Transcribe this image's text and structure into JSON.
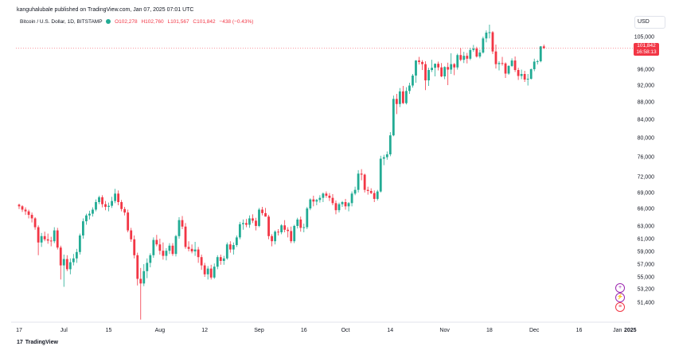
{
  "header": {
    "publisher_line": "kanguhalubale published on TradingView.com, Jan 07, 2025 07:01 UTC",
    "symbol": "Bitcoin / U.S. Dollar, 1D, BITSTAMP",
    "open": "O102,278",
    "high": "H102,760",
    "low": "L101,567",
    "close": "C101,842",
    "change": "−438 (−0.43%)"
  },
  "currency": "USD",
  "last_price": {
    "price": "101,842",
    "countdown": "16:58:13",
    "value": 101842,
    "color": "#f23645"
  },
  "footer": {
    "brand": "TradingView"
  },
  "colors": {
    "up": "#22ab94",
    "down": "#f23645"
  },
  "event_icons": [
    {
      "name": "dividend-event-icon",
      "glyph": "+",
      "color": "#9c27b0"
    },
    {
      "name": "lightning-event-icon",
      "glyph": "⚡",
      "color": "#9c27b0"
    },
    {
      "name": "us-flag-event-icon",
      "glyph": "≡",
      "color": "#f23645"
    }
  ],
  "chart_data": {
    "type": "candlestick",
    "xlabel": "",
    "ylabel": "",
    "ylim": [
      47000,
      109500
    ],
    "y_ticks": [
      105000,
      96000,
      92000,
      88000,
      84000,
      80000,
      76000,
      72000,
      69000,
      66000,
      63000,
      61000,
      59000,
      57000,
      55000,
      53200,
      51400
    ],
    "x_ticks": [
      "17",
      "Jul",
      "15",
      "Aug",
      "12",
      "Sep",
      "16",
      "Oct",
      "14",
      "Nov",
      "18",
      "Dec",
      "16",
      "Jan",
      "2025"
    ],
    "x_tick_index": [
      0,
      14,
      28,
      44,
      58,
      75,
      89,
      102,
      116,
      133,
      147,
      161,
      175,
      188,
      189
    ],
    "grid": false,
    "candles": [
      [
        66700,
        66900,
        65900,
        66400
      ],
      [
        66400,
        66600,
        65400,
        65800
      ],
      [
        65800,
        66200,
        64900,
        65500
      ],
      [
        65500,
        65800,
        64300,
        64900
      ],
      [
        64900,
        65300,
        63600,
        64300
      ],
      [
        64300,
        64500,
        62400,
        62800
      ],
      [
        62800,
        63100,
        58400,
        60400
      ],
      [
        60400,
        61900,
        59700,
        61400
      ],
      [
        61400,
        62100,
        60600,
        60900
      ],
      [
        60900,
        61800,
        60200,
        60700
      ],
      [
        60700,
        61300,
        59800,
        60600
      ],
      [
        60600,
        62800,
        60300,
        62300
      ],
      [
        62300,
        62700,
        59300,
        59600
      ],
      [
        59600,
        59900,
        54600,
        56800
      ],
      [
        56800,
        58500,
        53500,
        57800
      ],
      [
        57800,
        58400,
        55900,
        56200
      ],
      [
        56200,
        57900,
        55400,
        57300
      ],
      [
        57300,
        58600,
        56800,
        57900
      ],
      [
        57900,
        59400,
        57200,
        58900
      ],
      [
        58900,
        61800,
        58500,
        61500
      ],
      [
        61500,
        64300,
        61000,
        63800
      ],
      [
        63800,
        65100,
        63200,
        64800
      ],
      [
        64800,
        65600,
        64100,
        65100
      ],
      [
        65100,
        66200,
        64600,
        65800
      ],
      [
        65800,
        67700,
        65500,
        67200
      ],
      [
        67200,
        68400,
        66800,
        68100
      ],
      [
        68100,
        68500,
        66200,
        66800
      ],
      [
        66800,
        67400,
        65700,
        66300
      ],
      [
        66300,
        67100,
        65500,
        66500
      ],
      [
        66500,
        68200,
        66100,
        67400
      ],
      [
        67400,
        69700,
        67000,
        68800
      ],
      [
        68800,
        69400,
        66600,
        67200
      ],
      [
        67200,
        67600,
        65500,
        65900
      ],
      [
        65900,
        66300,
        64800,
        65300
      ],
      [
        65300,
        65800,
        62000,
        62300
      ],
      [
        62300,
        62700,
        60500,
        60900
      ],
      [
        60900,
        61500,
        57900,
        58400
      ],
      [
        58400,
        58800,
        53700,
        54700
      ],
      [
        54700,
        56400,
        49100,
        54000
      ],
      [
        54000,
        57000,
        53600,
        55900
      ],
      [
        55900,
        57900,
        54800,
        57200
      ],
      [
        57200,
        58700,
        56500,
        58400
      ],
      [
        58400,
        61200,
        58000,
        60800
      ],
      [
        60800,
        61600,
        59800,
        60100
      ],
      [
        60100,
        61000,
        58500,
        59100
      ],
      [
        59100,
        60400,
        57700,
        58300
      ],
      [
        58300,
        59500,
        57600,
        59100
      ],
      [
        59100,
        60300,
        58600,
        59900
      ],
      [
        59900,
        60300,
        58300,
        58600
      ],
      [
        58600,
        61600,
        58200,
        61400
      ],
      [
        61400,
        64500,
        61000,
        64000
      ],
      [
        64000,
        64700,
        62500,
        62900
      ],
      [
        62900,
        63500,
        59400,
        59700
      ],
      [
        59700,
        60600,
        59000,
        59400
      ],
      [
        59400,
        60100,
        58700,
        59000
      ],
      [
        59000,
        60500,
        58300,
        59300
      ],
      [
        59300,
        59700,
        57200,
        58100
      ],
      [
        58100,
        58500,
        56100,
        56800
      ],
      [
        56800,
        57200,
        55000,
        55400
      ],
      [
        55400,
        56700,
        54600,
        56300
      ],
      [
        56300,
        56900,
        54600,
        54900
      ],
      [
        54900,
        57100,
        54700,
        56600
      ],
      [
        56600,
        58400,
        56200,
        58100
      ],
      [
        58100,
        58500,
        56900,
        57500
      ],
      [
        57500,
        58300,
        56900,
        57900
      ],
      [
        57900,
        60400,
        57700,
        60100
      ],
      [
        60100,
        60600,
        58800,
        59300
      ],
      [
        59300,
        60400,
        58500,
        60000
      ],
      [
        60000,
        61500,
        59700,
        61200
      ],
      [
        61200,
        63700,
        60900,
        63300
      ],
      [
        63300,
        64100,
        62400,
        63500
      ],
      [
        63500,
        64200,
        62800,
        63200
      ],
      [
        63200,
        64800,
        62700,
        64300
      ],
      [
        64300,
        65000,
        63500,
        63900
      ],
      [
        63900,
        64400,
        62300,
        63000
      ],
      [
        63000,
        66100,
        62800,
        65800
      ],
      [
        65800,
        66300,
        64800,
        65200
      ],
      [
        65200,
        66100,
        64600,
        64600
      ],
      [
        64600,
        64900,
        60900,
        61400
      ],
      [
        61400,
        61700,
        59800,
        60600
      ],
      [
        60600,
        62300,
        60100,
        62100
      ],
      [
        62100,
        62500,
        61500,
        62000
      ],
      [
        62000,
        63300,
        61700,
        63100
      ],
      [
        63100,
        64000,
        62000,
        62400
      ],
      [
        62400,
        62800,
        61200,
        62200
      ],
      [
        62200,
        62900,
        60300,
        60600
      ],
      [
        60600,
        63200,
        60300,
        63000
      ],
      [
        63000,
        64400,
        62600,
        64100
      ],
      [
        64100,
        64600,
        62100,
        62700
      ],
      [
        62700,
        63400,
        62000,
        62800
      ],
      [
        62800,
        66300,
        62500,
        66000
      ],
      [
        66000,
        67900,
        65700,
        67700
      ],
      [
        67700,
        68400,
        66400,
        67300
      ],
      [
        67300,
        67800,
        66600,
        67600
      ],
      [
        67600,
        68500,
        67100,
        68000
      ],
      [
        68000,
        69000,
        67200,
        68800
      ],
      [
        68800,
        69200,
        68000,
        68400
      ],
      [
        68400,
        68900,
        67400,
        68000
      ],
      [
        68000,
        68700,
        66600,
        67000
      ],
      [
        67000,
        67500,
        65000,
        65700
      ],
      [
        65700,
        67100,
        65300,
        66800
      ],
      [
        66800,
        67400,
        66300,
        67200
      ],
      [
        67200,
        67800,
        65800,
        66400
      ],
      [
        66400,
        67200,
        65500,
        67000
      ],
      [
        67000,
        69200,
        66400,
        68800
      ],
      [
        68800,
        70100,
        68500,
        69500
      ],
      [
        69500,
        73300,
        69000,
        72600
      ],
      [
        72600,
        73500,
        71300,
        72400
      ],
      [
        72400,
        72600,
        69000,
        69500
      ],
      [
        69500,
        70100,
        68600,
        69300
      ],
      [
        69300,
        69800,
        68700,
        68900
      ],
      [
        68900,
        69400,
        67200,
        67800
      ],
      [
        67800,
        69500,
        67500,
        69200
      ],
      [
        69200,
        76200,
        69000,
        75600
      ],
      [
        75600,
        76400,
        74300,
        75900
      ],
      [
        75900,
        77100,
        75400,
        76500
      ],
      [
        76500,
        81200,
        76100,
        80500
      ],
      [
        80500,
        89500,
        80300,
        88700
      ],
      [
        88700,
        89900,
        85200,
        87500
      ],
      [
        87500,
        91300,
        86800,
        90500
      ],
      [
        90500,
        91800,
        87500,
        87700
      ],
      [
        87700,
        91500,
        87400,
        90600
      ],
      [
        90600,
        92600,
        89900,
        91900
      ],
      [
        91900,
        94800,
        91400,
        94400
      ],
      [
        94400,
        98500,
        92600,
        98400
      ],
      [
        98400,
        99400,
        97300,
        98000
      ],
      [
        98000,
        98500,
        95800,
        97400
      ],
      [
        97400,
        98200,
        90800,
        93200
      ],
      [
        93200,
        96400,
        91800,
        95800
      ],
      [
        95800,
        98600,
        95300,
        96400
      ],
      [
        96400,
        97600,
        94200,
        97500
      ],
      [
        97500,
        98100,
        95700,
        96500
      ],
      [
        96500,
        97700,
        94000,
        94200
      ],
      [
        94200,
        96800,
        93500,
        96600
      ],
      [
        96600,
        97800,
        92000,
        95900
      ],
      [
        95900,
        100400,
        94800,
        97400
      ],
      [
        97400,
        97700,
        94500,
        96500
      ],
      [
        96500,
        100300,
        95900,
        99900
      ],
      [
        99900,
        101800,
        98200,
        98600
      ],
      [
        98600,
        100800,
        97700,
        99700
      ],
      [
        99700,
        100500,
        97600,
        98900
      ],
      [
        98900,
        101900,
        98500,
        101300
      ],
      [
        101300,
        102700,
        100800,
        101700
      ],
      [
        101700,
        102200,
        99200,
        99500
      ],
      [
        99500,
        101400,
        99000,
        100600
      ],
      [
        100600,
        105000,
        100300,
        104500
      ],
      [
        104500,
        106700,
        103400,
        106100
      ],
      [
        106100,
        108300,
        104500,
        106200
      ],
      [
        106200,
        106500,
        100200,
        100900
      ],
      [
        100900,
        102800,
        96200,
        97400
      ],
      [
        97400,
        98200,
        95700,
        97700
      ],
      [
        97700,
        99400,
        97000,
        97600
      ],
      [
        97600,
        97900,
        93800,
        94900
      ],
      [
        94900,
        97100,
        94600,
        96900
      ],
      [
        96900,
        99000,
        96600,
        98400
      ],
      [
        98400,
        99500,
        95300,
        95800
      ],
      [
        95800,
        96400,
        93300,
        94300
      ],
      [
        94300,
        95900,
        93500,
        94800
      ],
      [
        94800,
        95600,
        92800,
        93400
      ],
      [
        93400,
        94800,
        91900,
        93600
      ],
      [
        93600,
        96200,
        93400,
        96000
      ],
      [
        96000,
        98900,
        95500,
        98100
      ],
      [
        98100,
        98600,
        97300,
        98200
      ],
      [
        98200,
        102400,
        97900,
        102300
      ],
      [
        102300,
        102800,
        101600,
        101800
      ]
    ]
  }
}
